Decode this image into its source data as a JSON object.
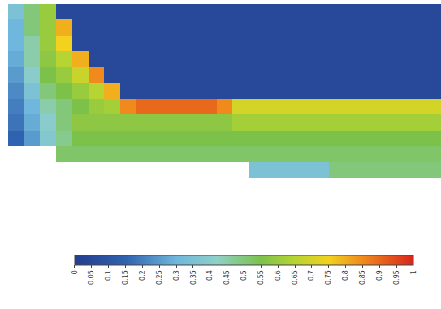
{
  "chart_data": {
    "type": "heatmap",
    "tick_labels": false,
    "cells": [
      [
        0.35,
        0.5,
        0.6,
        0.05,
        0.05,
        0.05,
        0.05,
        0.05,
        0.05,
        0.05,
        0.05,
        0.05,
        0.05,
        0.05,
        0.05,
        0.05,
        0.05,
        0.05,
        0.05,
        0.05,
        0.05,
        0.05,
        0.05,
        0.05,
        0.05,
        0.05,
        0.05
      ],
      [
        0.3,
        0.5,
        0.6,
        0.8,
        0.05,
        0.05,
        0.05,
        0.05,
        0.05,
        0.05,
        0.05,
        0.05,
        0.05,
        0.05,
        0.05,
        0.05,
        0.05,
        0.05,
        0.05,
        0.05,
        0.05,
        0.05,
        0.05,
        0.05,
        0.05,
        0.05,
        0.05
      ],
      [
        0.3,
        0.45,
        0.6,
        0.75,
        0.05,
        0.05,
        0.05,
        0.05,
        0.05,
        0.05,
        0.05,
        0.05,
        0.05,
        0.05,
        0.05,
        0.05,
        0.05,
        0.05,
        0.05,
        0.05,
        0.05,
        0.05,
        0.05,
        0.05,
        0.05,
        0.05,
        0.05
      ],
      [
        0.28,
        0.45,
        0.58,
        0.65,
        0.8,
        0.05,
        0.05,
        0.05,
        0.05,
        0.05,
        0.05,
        0.05,
        0.05,
        0.05,
        0.05,
        0.05,
        0.05,
        0.05,
        0.05,
        0.05,
        0.05,
        0.05,
        0.05,
        0.05,
        0.05,
        0.05,
        0.05
      ],
      [
        0.25,
        0.4,
        0.55,
        0.6,
        0.68,
        0.85,
        0.05,
        0.05,
        0.05,
        0.05,
        0.05,
        0.05,
        0.05,
        0.05,
        0.05,
        0.05,
        0.05,
        0.05,
        0.05,
        0.05,
        0.05,
        0.05,
        0.05,
        0.05,
        0.05,
        0.05,
        0.05
      ],
      [
        0.22,
        0.35,
        0.5,
        0.55,
        0.6,
        0.65,
        0.8,
        0.05,
        0.05,
        0.05,
        0.05,
        0.05,
        0.05,
        0.05,
        0.05,
        0.05,
        0.05,
        0.05,
        0.05,
        0.05,
        0.05,
        0.05,
        0.05,
        0.05,
        0.05,
        0.05,
        0.05
      ],
      [
        0.2,
        0.3,
        0.45,
        0.5,
        0.55,
        0.6,
        0.62,
        0.85,
        0.9,
        0.9,
        0.9,
        0.9,
        0.9,
        0.85,
        0.7,
        0.7,
        0.7,
        0.7,
        0.7,
        0.7,
        0.7,
        0.7,
        0.7,
        0.7,
        0.7,
        0.7,
        0.7
      ],
      [
        0.18,
        0.28,
        0.4,
        0.5,
        0.58,
        0.58,
        0.58,
        0.58,
        0.58,
        0.58,
        0.58,
        0.58,
        0.58,
        0.58,
        0.62,
        0.62,
        0.62,
        0.62,
        0.62,
        0.62,
        0.62,
        0.62,
        0.62,
        0.62,
        0.62,
        0.62,
        0.62
      ],
      [
        0.15,
        0.25,
        0.38,
        0.48,
        0.55,
        0.55,
        0.55,
        0.55,
        0.55,
        0.55,
        0.55,
        0.55,
        0.55,
        0.55,
        0.55,
        0.55,
        0.55,
        0.55,
        0.55,
        0.55,
        0.55,
        0.55,
        0.55,
        0.55,
        0.55,
        0.55,
        0.55
      ],
      [
        null,
        null,
        null,
        0.52,
        0.52,
        0.52,
        0.52,
        0.52,
        0.52,
        0.52,
        0.52,
        0.52,
        0.52,
        0.52,
        0.52,
        0.52,
        0.52,
        0.52,
        0.52,
        0.52,
        0.52,
        0.52,
        0.52,
        0.52,
        0.52,
        0.52,
        0.52
      ],
      [
        null,
        null,
        null,
        null,
        null,
        null,
        null,
        null,
        null,
        null,
        null,
        null,
        null,
        null,
        null,
        0.35,
        0.35,
        0.35,
        0.35,
        0.35,
        0.5,
        0.5,
        0.5,
        0.5,
        0.5,
        0.5,
        0.5
      ]
    ],
    "colorbar": {
      "range": [
        0,
        1
      ],
      "ticks": [
        0,
        0.05,
        0.1,
        0.15,
        0.2,
        0.25,
        0.3,
        0.35,
        0.4,
        0.45,
        0.5,
        0.55,
        0.6,
        0.65,
        0.7,
        0.75,
        0.8,
        0.85,
        0.9,
        0.95,
        1
      ]
    }
  }
}
